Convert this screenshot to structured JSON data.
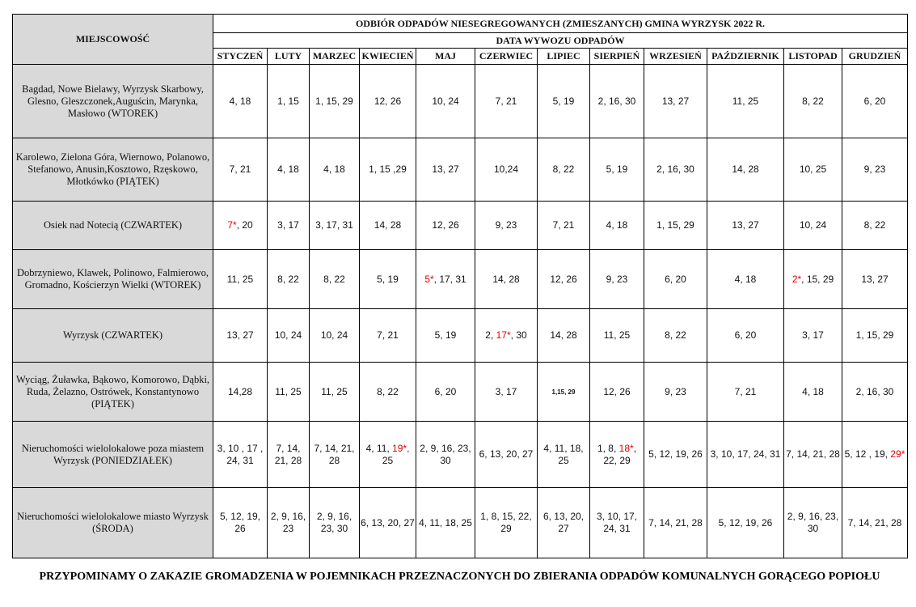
{
  "title": "ODBIÓR ODPADÓW NIESEGREGOWANYCH (ZMIESZANYCH) GMINA WYRZYSK 2022 R.",
  "location_header": "MIEJSCOWOŚĆ",
  "date_header": "DATA WYWOZU ODPADÓW",
  "months": [
    "STYCZEŃ",
    "LUTY",
    "MARZEC",
    "KWIECIEŃ",
    "MAJ",
    "CZERWIEC",
    "LIPIEC",
    "SIERPIEŃ",
    "WRZESIEŃ",
    "PAŹDZIERNIK",
    "LISTOPAD",
    "GRUDZIEŃ"
  ],
  "rows": [
    {
      "location": "Bagdad, Nowe Bielawy, Wyrzysk Skarbowy, Glesno, Gleszczonek,Auguścin, Marynka, Masłowo (WTOREK)",
      "cells": [
        [
          {
            "t": "4, 18"
          }
        ],
        [
          {
            "t": "1, 15"
          }
        ],
        [
          {
            "t": "1, 15, 29"
          }
        ],
        [
          {
            "t": "12, 26"
          }
        ],
        [
          {
            "t": "10, 24"
          }
        ],
        [
          {
            "t": "7, 21"
          }
        ],
        [
          {
            "t": "5, 19"
          }
        ],
        [
          {
            "t": "2, 16, 30"
          }
        ],
        [
          {
            "t": "13, 27"
          }
        ],
        [
          {
            "t": "11, 25"
          }
        ],
        [
          {
            "t": "8, 22"
          }
        ],
        [
          {
            "t": "6, 20"
          }
        ]
      ]
    },
    {
      "location": "Karolewo, Zielona Góra, Wiernowo, Polanowo, Stefanowo, Anusin,Kosztowo, Rzęskowo, Młotkówko (PIĄTEK)",
      "cells": [
        [
          {
            "t": "7, 21"
          }
        ],
        [
          {
            "t": "4, 18"
          }
        ],
        [
          {
            "t": "4, 18"
          }
        ],
        [
          {
            "t": "1, 15 ,29"
          }
        ],
        [
          {
            "t": "13, 27"
          }
        ],
        [
          {
            "t": "10,24"
          }
        ],
        [
          {
            "t": "8, 22"
          }
        ],
        [
          {
            "t": "5, 19"
          }
        ],
        [
          {
            "t": "2, 16, 30"
          }
        ],
        [
          {
            "t": "14, 28"
          }
        ],
        [
          {
            "t": "10, 25"
          }
        ],
        [
          {
            "t": "9, 23"
          }
        ]
      ]
    },
    {
      "location": "Osiek nad Notecią (CZWARTEK)",
      "cells": [
        [
          {
            "t": "7*",
            "red": true
          },
          {
            "t": ", 20"
          }
        ],
        [
          {
            "t": "3, 17"
          }
        ],
        [
          {
            "t": "3, 17, 31"
          }
        ],
        [
          {
            "t": "14, 28"
          }
        ],
        [
          {
            "t": "12, 26"
          }
        ],
        [
          {
            "t": "9, 23"
          }
        ],
        [
          {
            "t": "7, 21"
          }
        ],
        [
          {
            "t": "4, 18"
          }
        ],
        [
          {
            "t": "1, 15, 29"
          }
        ],
        [
          {
            "t": "13, 27"
          }
        ],
        [
          {
            "t": "10, 24"
          }
        ],
        [
          {
            "t": "8, 22"
          }
        ]
      ]
    },
    {
      "location": "Dobrzyniewo, Klawek, Polinowo, Falmierowo, Gromadno, Kościerzyn Wielki (WTOREK)",
      "cells": [
        [
          {
            "t": "11, 25"
          }
        ],
        [
          {
            "t": "8, 22"
          }
        ],
        [
          {
            "t": "8, 22"
          }
        ],
        [
          {
            "t": "5, 19"
          }
        ],
        [
          {
            "t": "5*",
            "red": true
          },
          {
            "t": ", 17, 31"
          }
        ],
        [
          {
            "t": "14, 28"
          }
        ],
        [
          {
            "t": "12, 26"
          }
        ],
        [
          {
            "t": "9, 23"
          }
        ],
        [
          {
            "t": "6, 20"
          }
        ],
        [
          {
            "t": "4, 18"
          }
        ],
        [
          {
            "t": "2*",
            "red": true
          },
          {
            "t": ", 15, 29"
          }
        ],
        [
          {
            "t": "13, 27"
          }
        ]
      ]
    },
    {
      "location": "Wyrzysk (CZWARTEK)",
      "cells": [
        [
          {
            "t": "13, 27"
          }
        ],
        [
          {
            "t": "10, 24"
          }
        ],
        [
          {
            "t": "10, 24"
          }
        ],
        [
          {
            "t": "7, 21"
          }
        ],
        [
          {
            "t": "5, 19"
          }
        ],
        [
          {
            "t": "2, "
          },
          {
            "t": "17*",
            "red": true
          },
          {
            "t": ", 30"
          }
        ],
        [
          {
            "t": "14, 28"
          }
        ],
        [
          {
            "t": "11, 25"
          }
        ],
        [
          {
            "t": "8, 22"
          }
        ],
        [
          {
            "t": "6, 20"
          }
        ],
        [
          {
            "t": "3, 17"
          }
        ],
        [
          {
            "t": "1, 15, 29"
          }
        ]
      ]
    },
    {
      "location": "Wyciąg, Żuławka, Bąkowo, Komorowo, Dąbki, Ruda, Żelazno, Ostrówek, Konstantynowo (PIĄTEK)",
      "cells": [
        [
          {
            "t": "14,28"
          }
        ],
        [
          {
            "t": "11, 25"
          }
        ],
        [
          {
            "t": "11, 25"
          }
        ],
        [
          {
            "t": "8, 22"
          }
        ],
        [
          {
            "t": "6, 20"
          }
        ],
        [
          {
            "t": "3, 17"
          }
        ],
        [
          {
            "t": "1,15, 29",
            "tiny": true
          }
        ],
        [
          {
            "t": "12, 26"
          }
        ],
        [
          {
            "t": "9, 23"
          }
        ],
        [
          {
            "t": "7, 21"
          }
        ],
        [
          {
            "t": "4, 18"
          }
        ],
        [
          {
            "t": "2, 16, 30"
          }
        ]
      ]
    },
    {
      "location": "Nieruchomości wielolokalowe poza miastem Wyrzysk (PONIEDZIAŁEK)",
      "cells": [
        [
          {
            "t": "3, 10 , 17 , 24, 31"
          }
        ],
        [
          {
            "t": "7, 14, 21, 28"
          }
        ],
        [
          {
            "t": "7, 14, 21, 28"
          }
        ],
        [
          {
            "t": "4, 11, "
          },
          {
            "t": "19*,",
            "red": true
          },
          {
            "t": " 25"
          }
        ],
        [
          {
            "t": "2, 9, 16, 23, 30"
          }
        ],
        [
          {
            "t": "6, 13, 20, 27"
          }
        ],
        [
          {
            "t": "4, 11, 18, 25"
          }
        ],
        [
          {
            "t": "1, 8, "
          },
          {
            "t": "18*",
            "red": true
          },
          {
            "t": ", 22, 29"
          }
        ],
        [
          {
            "t": "5, 12, 19, 26"
          }
        ],
        [
          {
            "t": "3, 10, 17, 24, 31"
          }
        ],
        [
          {
            "t": "7, 14, 21, 28"
          }
        ],
        [
          {
            "t": "5, 12 , 19, "
          },
          {
            "t": "29*",
            "red": true
          }
        ]
      ]
    },
    {
      "location": "Nieruchomości wielolokalowe miasto Wyrzysk (ŚRODA)",
      "cells": [
        [
          {
            "t": "5, 12, 19, 26"
          }
        ],
        [
          {
            "t": "2, 9, 16, 23"
          }
        ],
        [
          {
            "t": "2, 9, 16, 23, 30"
          }
        ],
        [
          {
            "t": "6, 13, 20, 27"
          }
        ],
        [
          {
            "t": "4, 11, 18, 25"
          }
        ],
        [
          {
            "t": "1, 8, 15, 22, 29"
          }
        ],
        [
          {
            "t": "6, 13, 20, 27"
          }
        ],
        [
          {
            "t": "3, 10, 17, 24, 31"
          }
        ],
        [
          {
            "t": "7, 14, 21, 28"
          }
        ],
        [
          {
            "t": "5, 12, 19, 26"
          }
        ],
        [
          {
            "t": "2, 9, 16, 23, 30"
          }
        ],
        [
          {
            "t": "7, 14, 21, 28"
          }
        ]
      ]
    }
  ],
  "footer": "PRZYPOMINAMY O ZAKAZIE GROMADZENIA W POJEMNIKACH PRZEZNACZONYCH DO ZBIERANIA ODPADÓW KOMUNALNYCH GORĄCEGO POPIOŁU",
  "colors": {
    "highlight": "#e00000",
    "header_bg": "#d9d9d9"
  }
}
